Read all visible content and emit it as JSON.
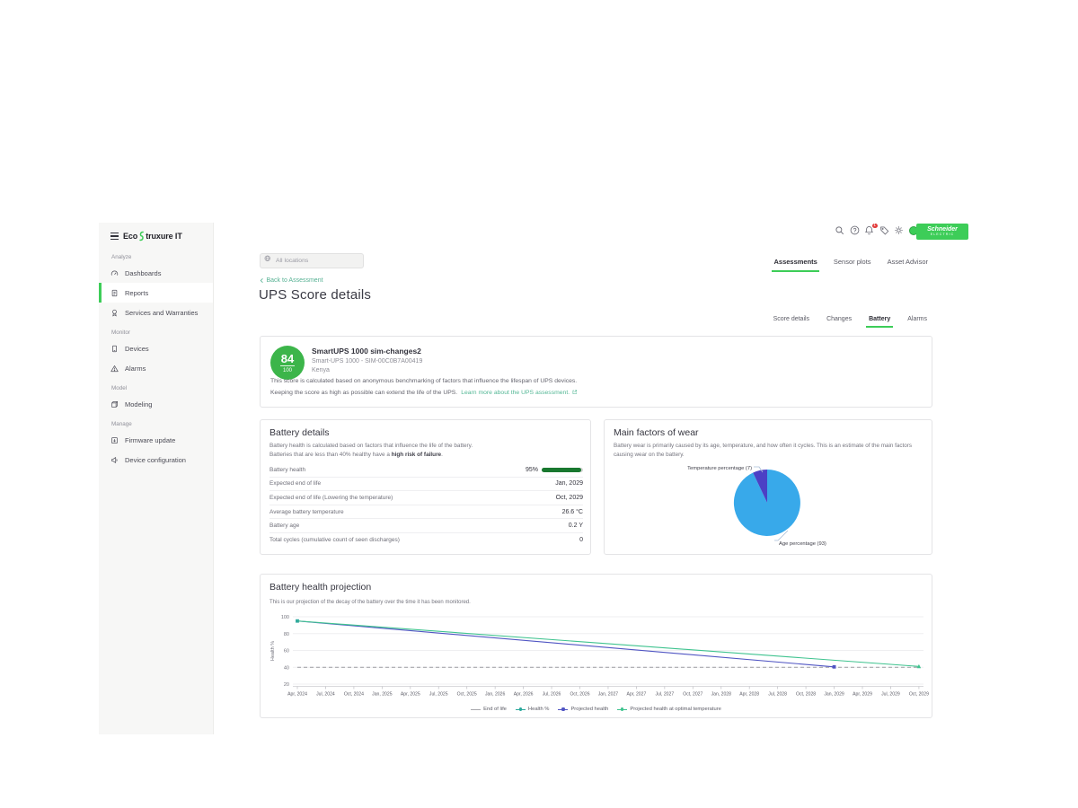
{
  "colors": {
    "accent_green": "#3dcd58",
    "score_circle_green": "#3cb54a",
    "link_teal": "#53b795",
    "progress_green": "#19782f",
    "badge_red": "#e23b3b"
  },
  "sidebar": {
    "logo": {
      "prefix": "Eco",
      "suffix": "truxure IT"
    },
    "sections": [
      {
        "label": "Analyze",
        "items": [
          {
            "label": "Dashboards",
            "icon": "gauge-icon",
            "active": false
          },
          {
            "label": "Reports",
            "icon": "report-icon",
            "active": true
          },
          {
            "label": "Services and Warranties",
            "icon": "award-icon",
            "active": false
          }
        ]
      },
      {
        "label": "Monitor",
        "items": [
          {
            "label": "Devices",
            "icon": "device-icon",
            "active": false
          },
          {
            "label": "Alarms",
            "icon": "alarm-icon",
            "active": false
          }
        ]
      },
      {
        "label": "Model",
        "items": [
          {
            "label": "Modeling",
            "icon": "modeling-icon",
            "active": false
          }
        ]
      },
      {
        "label": "Manage",
        "items": [
          {
            "label": "Firmware update",
            "icon": "firmware-icon",
            "active": false
          },
          {
            "label": "Device configuration",
            "icon": "config-icon",
            "active": false
          }
        ]
      }
    ]
  },
  "header": {
    "search_placeholder": "All locations",
    "notification_count": "1",
    "brand": {
      "line1": "Schneider",
      "line2": "Electric"
    },
    "tabs": [
      {
        "label": "Assessments",
        "active": true
      },
      {
        "label": "Sensor plots",
        "active": false
      },
      {
        "label": "Asset Advisor",
        "active": false
      }
    ]
  },
  "page": {
    "back_link": "Back to Assessment",
    "title": "UPS Score details",
    "subtabs": [
      {
        "label": "Score details",
        "active": false
      },
      {
        "label": "Changes",
        "active": false
      },
      {
        "label": "Battery",
        "active": true
      },
      {
        "label": "Alarms",
        "active": false
      }
    ]
  },
  "score_card": {
    "score": "84",
    "score_max": "100",
    "device_name": "SmartUPS 1000 sim-changes2",
    "device_model": "Smart-UPS 1000 - SIM-00C0B7A00419",
    "location": "Kenya",
    "description_line1": "This score is calculated based on anonymous benchmarking of factors that influence the lifespan of UPS devices.",
    "description_line2": "Keeping the score as high as possible can extend the life of the UPS.",
    "learn_more": "Learn more about the UPS assessment."
  },
  "battery_details": {
    "title": "Battery details",
    "description_line1": "Battery health is calculated based on factors that influence the life of the battery.",
    "description_line2_prefix": "Batteries that are less than 40% healthy have a ",
    "description_line2_bold": "high risk of failure",
    "description_line2_suffix": ".",
    "rows": [
      {
        "label": "Battery health",
        "value": "95%",
        "bar_percent": 95
      },
      {
        "label": "Expected end of life",
        "value": "Jan, 2029"
      },
      {
        "label": "Expected end of life (Lowering the temperature)",
        "value": "Oct, 2029"
      },
      {
        "label": "Average battery temperature",
        "value": "26.6 °C"
      },
      {
        "label": "Battery age",
        "value": "0.2 Y"
      },
      {
        "label": "Total cycles (cumulative count of seen discharges)",
        "value": "0"
      }
    ]
  },
  "wear_card": {
    "title": "Main factors of wear",
    "description": "Battery wear is primarily caused by its age, temperature, and how often it cycles. This is an estimate of the main factors causing wear on the battery."
  },
  "projection_card": {
    "title": "Battery health projection",
    "description": "This is our projection of the decay of the battery over the time it has been monitored."
  },
  "chart_data": [
    {
      "type": "pie",
      "title": "Main factors of wear",
      "slices": [
        {
          "label": "Age percentage (93)",
          "value": 93,
          "color": "#38a9ea"
        },
        {
          "label": "Temperature percentage (7)",
          "value": 7,
          "color": "#4c40c5"
        }
      ]
    },
    {
      "type": "line",
      "title": "Battery health projection",
      "ylabel": "Health %",
      "ylim": [
        20,
        100
      ],
      "yticks": [
        20,
        40,
        60,
        80,
        100
      ],
      "grid": true,
      "legend_position": "bottom",
      "x_labels": [
        "Apr, 2024",
        "Jul, 2024",
        "Oct, 2024",
        "Jan, 2025",
        "Apr, 2025",
        "Jul, 2025",
        "Oct, 2025",
        "Jan, 2026",
        "Apr, 2026",
        "Jul, 2026",
        "Oct, 2026",
        "Jan, 2027",
        "Apr, 2027",
        "Jul, 2027",
        "Oct, 2027",
        "Jan, 2028",
        "Apr, 2028",
        "Jul, 2028",
        "Oct, 2028",
        "Jan, 2029",
        "Apr, 2029",
        "Jul, 2029",
        "Oct, 2029"
      ],
      "series": [
        {
          "name": "End of life",
          "color": "#a8a8ad",
          "style": "dashed",
          "marker": null,
          "points": [
            [
              0,
              40
            ],
            [
              22,
              40
            ]
          ]
        },
        {
          "name": "Health %",
          "color": "#2ba89c",
          "style": "solid",
          "marker": "square",
          "marker_at": "all",
          "points": [
            [
              0,
              95
            ]
          ]
        },
        {
          "name": "Projected health",
          "color": "#5055c3",
          "style": "solid",
          "marker": "square",
          "marker_at": "end",
          "points": [
            [
              0,
              95
            ],
            [
              19,
              40.5
            ]
          ]
        },
        {
          "name": "Projected health at optimal temperature",
          "color": "#3fc38f",
          "style": "solid",
          "marker": "triangle",
          "marker_at": "end",
          "points": [
            [
              0,
              95
            ],
            [
              22,
              41
            ]
          ]
        }
      ]
    }
  ]
}
